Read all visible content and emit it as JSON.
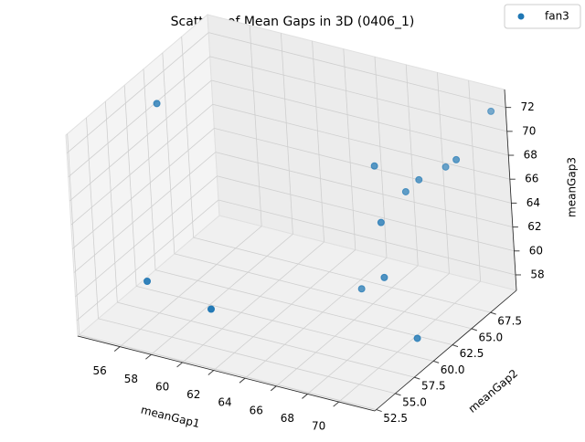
{
  "chart_data": {
    "type": "scatter3d",
    "title": "Scatters of Mean Gaps in 3D (0406_1)",
    "xlabel": "meanGap1",
    "ylabel": "meanGap2",
    "zlabel": "meanGap3",
    "series": [
      {
        "name": "fan3",
        "color": "#1f77b4",
        "x": [
          54.5,
          56.1,
          61.6,
          66.1,
          68.6,
          68.6,
          67.4,
          68.4,
          69.3,
          70.1,
          71.8,
          71.8,
          71.5
        ],
        "y": [
          61.6,
          56.0,
          53.2,
          63.5,
          61.6,
          61.6,
          63.5,
          65.3,
          65.3,
          67.2,
          65.3,
          70.0,
          59.7
        ],
        "z": [
          71.5,
          60.2,
          61.2,
          58.8,
          61.6,
          66.2,
          69.5,
          66.7,
          68.0,
          68.3,
          70.5,
          72.0,
          58.5
        ]
      }
    ],
    "xlim": [
      53.3,
      72.3
    ],
    "ylim": [
      52.3,
      70.9
    ],
    "zlim": [
      56.7,
      73.5
    ],
    "xticks": [
      56,
      58,
      60,
      62,
      64,
      66,
      68,
      70
    ],
    "yticks": [
      52.5,
      {
        "value": 55,
        "label": "55.0"
      },
      57.5,
      {
        "value": 60,
        "label": "60.0"
      },
      62.5,
      {
        "value": 65,
        "label": "65.0"
      },
      67.5
    ],
    "zticks": [
      58,
      60,
      62,
      64,
      66,
      68,
      70,
      72
    ],
    "grid": true,
    "legend": "upper right"
  }
}
